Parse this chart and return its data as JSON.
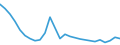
{
  "x": [
    0,
    1,
    2,
    3,
    4,
    5,
    6,
    7,
    8,
    9,
    10,
    11,
    12,
    13,
    14,
    15,
    16,
    17,
    18,
    19,
    20,
    21,
    22,
    23,
    24
  ],
  "y": [
    16.5,
    15.5,
    14.2,
    12.5,
    10.5,
    9.2,
    8.5,
    8.0,
    8.2,
    9.8,
    13.5,
    11.0,
    8.5,
    9.5,
    9.0,
    8.7,
    8.4,
    8.2,
    8.0,
    7.8,
    8.2,
    7.6,
    8.0,
    8.8,
    8.5
  ],
  "line_color": "#3a9fd6",
  "linewidth": 1.2,
  "background_color": "#ffffff",
  "ylim": [
    7.0,
    17.5
  ]
}
